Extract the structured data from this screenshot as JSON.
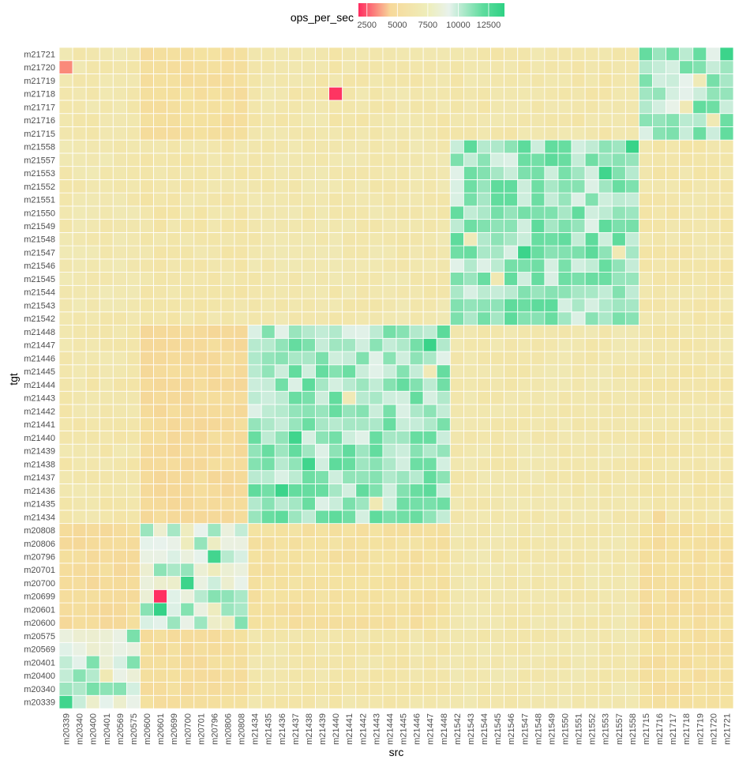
{
  "chart_data": {
    "type": "heatmap",
    "title": "",
    "xlabel": "src",
    "ylabel": "tgt",
    "legend": {
      "title": "ops_per_sec",
      "placement": "top",
      "ticks": [
        2500,
        5000,
        7500,
        10000,
        12500
      ],
      "tick_labels": [
        "2500",
        "5000",
        "7500",
        "10000",
        "12500"
      ],
      "range": [
        1800,
        13800
      ],
      "colors": [
        "#ff2a5f",
        "#f7d99a",
        "#eeeebb",
        "#e8f2ec",
        "#5fdc9e",
        "#2ed184"
      ]
    },
    "x": [
      "m20339",
      "m20340",
      "m20400",
      "m20401",
      "m20569",
      "m20575",
      "m20600",
      "m20601",
      "m20699",
      "m20700",
      "m20701",
      "m20796",
      "m20806",
      "m20808",
      "m21434",
      "m21435",
      "m21436",
      "m21437",
      "m21438",
      "m21439",
      "m21440",
      "m21441",
      "m21442",
      "m21443",
      "m21444",
      "m21445",
      "m21446",
      "m21447",
      "m21448",
      "m21542",
      "m21543",
      "m21544",
      "m21545",
      "m21546",
      "m21547",
      "m21548",
      "m21549",
      "m21550",
      "m21551",
      "m21552",
      "m21553",
      "m21557",
      "m21558",
      "m21715",
      "m21716",
      "m21717",
      "m21718",
      "m21719",
      "m21720",
      "m21721"
    ],
    "y": [
      "m20339",
      "m20340",
      "m20400",
      "m20401",
      "m20569",
      "m20575",
      "m20600",
      "m20601",
      "m20699",
      "m20700",
      "m20701",
      "m20796",
      "m20806",
      "m20808",
      "m21434",
      "m21435",
      "m21436",
      "m21437",
      "m21438",
      "m21439",
      "m21440",
      "m21441",
      "m21442",
      "m21443",
      "m21444",
      "m21445",
      "m21446",
      "m21447",
      "m21448",
      "m21542",
      "m21543",
      "m21544",
      "m21545",
      "m21546",
      "m21547",
      "m21548",
      "m21549",
      "m21550",
      "m21551",
      "m21552",
      "m21553",
      "m21557",
      "m21558",
      "m21715",
      "m21716",
      "m21717",
      "m21718",
      "m21719",
      "m21720",
      "m21721"
    ],
    "groups": [
      {
        "members": [
          0,
          1,
          2,
          3,
          4,
          5
        ],
        "diag": 10500,
        "var": 1400
      },
      {
        "members": [
          6,
          7,
          8,
          9,
          10,
          11,
          12,
          13
        ],
        "diag": 10200,
        "var": 1500
      },
      {
        "members": [
          14,
          15,
          16,
          17,
          18,
          19,
          20,
          21,
          22,
          23,
          24,
          25,
          26,
          27,
          28
        ],
        "diag": 11300,
        "var": 1200
      },
      {
        "members": [
          29,
          30,
          31,
          32,
          33,
          34,
          35,
          36,
          37,
          38,
          39,
          40,
          41,
          42
        ],
        "diag": 11300,
        "var": 1200
      },
      {
        "members": [
          43,
          44,
          45,
          46,
          47,
          48,
          49
        ],
        "diag": 11200,
        "var": 1300
      }
    ],
    "off_diagonal": {
      "default": 7900,
      "by_src_group": [
        7700,
        6400,
        7600,
        7800,
        7200
      ],
      "by_tgt_group_src_group": [
        [
          null,
          6600,
          7600,
          7800,
          6800
        ],
        [
          6400,
          null,
          6900,
          7800,
          6700
        ],
        [
          7700,
          6300,
          null,
          7800,
          7600
        ],
        [
          7900,
          7600,
          7800,
          null,
          7600
        ],
        [
          7800,
          6700,
          7700,
          7700,
          null
        ]
      ]
    },
    "notable_cells": [
      {
        "src": "m21440",
        "tgt": "m21718",
        "value": 2000
      },
      {
        "src": "m20601",
        "tgt": "m20699",
        "value": 1900
      },
      {
        "src": "m20339",
        "tgt": "m21720",
        "value": 3500
      },
      {
        "src": "m20601",
        "tgt": "m20601",
        "value": 13600
      },
      {
        "src": "m20700",
        "tgt": "m20700",
        "value": 13400
      },
      {
        "src": "m20796",
        "tgt": "m20796",
        "value": 13200
      },
      {
        "src": "m21558",
        "tgt": "m21558",
        "value": 13500
      },
      {
        "src": "m21553",
        "tgt": "m21553",
        "value": 13300
      },
      {
        "src": "m21547",
        "tgt": "m21547",
        "value": 13400
      },
      {
        "src": "m21447",
        "tgt": "m21447",
        "value": 13500
      },
      {
        "src": "m21436",
        "tgt": "m21436",
        "value": 13400
      },
      {
        "src": "m21721",
        "tgt": "m21721",
        "value": 13400
      },
      {
        "src": "m20339",
        "tgt": "m20339",
        "value": 13300
      },
      {
        "src": "m21437",
        "tgt": "m21440",
        "value": 13300
      },
      {
        "src": "m21438",
        "tgt": "m21438",
        "value": 13300
      },
      {
        "src": "m21543",
        "tgt": "m21548",
        "value": 8500
      },
      {
        "src": "m21557",
        "tgt": "m21547",
        "value": 8200
      },
      {
        "src": "m21545",
        "tgt": "m21545",
        "value": 8100
      },
      {
        "src": "m21443",
        "tgt": "m21435",
        "value": 8200
      },
      {
        "src": "m21441",
        "tgt": "m21443",
        "value": 8300
      },
      {
        "src": "m21447",
        "tgt": "m21445",
        "value": 8300
      },
      {
        "src": "m20401",
        "tgt": "m20400",
        "value": 8200
      },
      {
        "src": "m21718",
        "tgt": "m21717",
        "value": 8300
      },
      {
        "src": "m21719",
        "tgt": "m21719",
        "value": 8400
      },
      {
        "src": "m21720",
        "tgt": "m21716",
        "value": 8200
      },
      {
        "src": "m20806",
        "tgt": "m21436",
        "value": 6000
      },
      {
        "src": "m21716",
        "tgt": "m21434",
        "value": 6200
      }
    ],
    "grid": true
  }
}
